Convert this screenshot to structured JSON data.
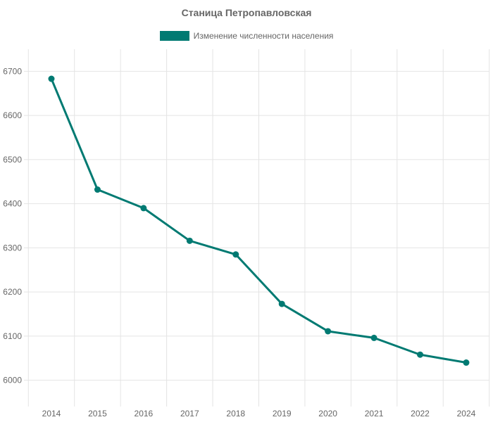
{
  "chart_data": {
    "type": "line",
    "title": "Станица Петропавловская",
    "xlabel": "",
    "ylabel": "",
    "categories": [
      "2014",
      "2015",
      "2016",
      "2017",
      "2018",
      "2019",
      "2020",
      "2021",
      "2022",
      "2024"
    ],
    "series": [
      {
        "name": "Изменение численности населения",
        "color": "#007a72",
        "values": [
          6683,
          6432,
          6390,
          6316,
          6285,
          6173,
          6111,
          6096,
          6058,
          6040
        ]
      }
    ],
    "yticks": [
      6000,
      6100,
      6200,
      6300,
      6400,
      6500,
      6600,
      6700
    ],
    "ylim": [
      5950,
      6750
    ],
    "grid": true,
    "legend": "top"
  }
}
